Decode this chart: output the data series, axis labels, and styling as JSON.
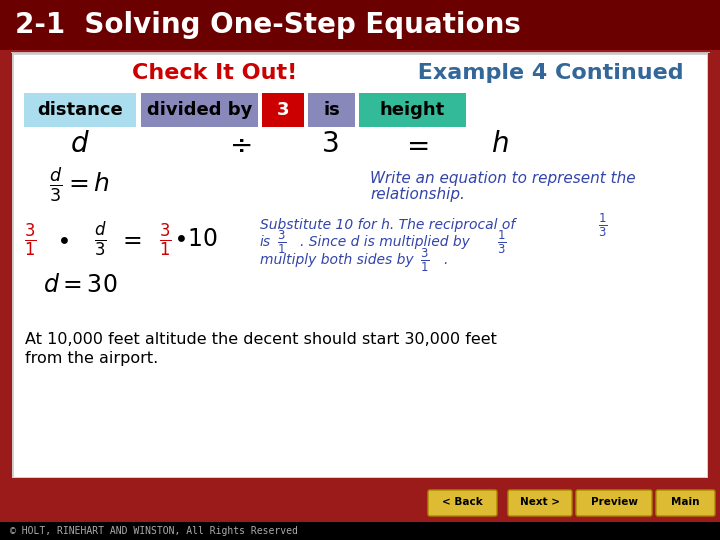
{
  "title": "2-1  Solving One-Step Equations",
  "title_bg": "#6B0000",
  "title_color": "#FFFFFF",
  "subtitle_check": "Check It Out!",
  "subtitle_check_color": "#CC0000",
  "subtitle_rest": " Example 4 Continued",
  "subtitle_rest_color": "#336699",
  "word_row": [
    {
      "text": "distance",
      "bg": "#AADDEE",
      "fg": "#000000"
    },
    {
      "text": "divided by",
      "bg": "#9999CC",
      "fg": "#000000"
    },
    {
      "text": "3",
      "bg": "#CC0000",
      "fg": "#FFFFFF"
    },
    {
      "text": "is",
      "bg": "#9999CC",
      "fg": "#000000"
    },
    {
      "text": "height",
      "bg": "#33BB99",
      "fg": "#000000"
    }
  ],
  "eq_row": "d   ÷   3   =   h",
  "line1_left": "$\\dfrac{d}{3} = h$",
  "line1_right": "Write an equation to represent the\nrelationship.",
  "line2_left": "$\\dfrac{3}{1} \\cdot \\dfrac{d}{3} = \\dfrac{3}{1} \\cdot 10$",
  "line2_right": "Substitute 10 for h. The reciprocal of $\\dfrac{1}{3}$\nis $\\dfrac{3}{1}$. Since d is multiplied by  $\\dfrac{1}{3}$\nmultiply both sides by $\\dfrac{3}{1}$.",
  "line3_left": "$d = 30$",
  "bottom_text": "At 10,000 feet altitude the decent should start 30,000 feet\nfrom the airport.",
  "footer_copyright": "© HOLT, RINEHART AND WINSTON, All Rights Reserved",
  "body_bg": "#FFFFFF",
  "outer_bg": "#9B1B1B",
  "math_color": "#000000",
  "blue_color": "#3344AA",
  "red_color": "#CC0000"
}
